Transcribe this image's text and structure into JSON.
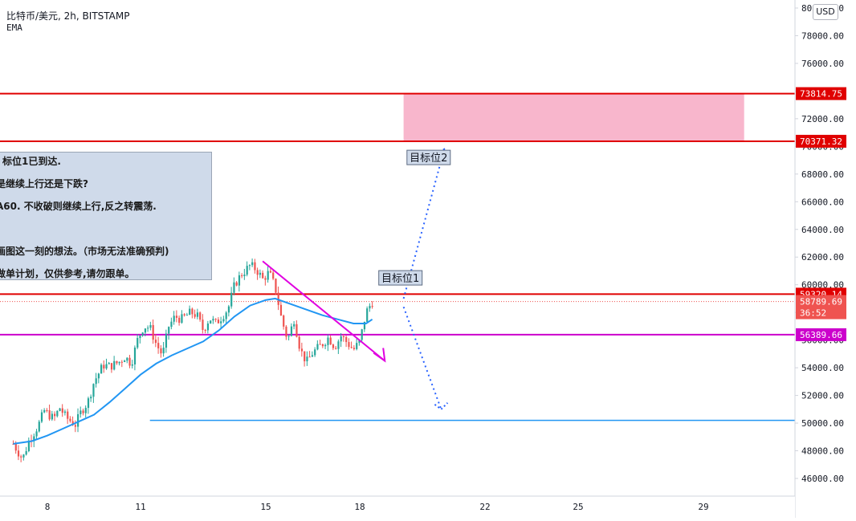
{
  "header": {
    "symbol_line": "比特币/美元, 2h, BITSTAMP",
    "indicator": "EMA",
    "currency_button": "USD"
  },
  "note": {
    "lines": [
      "标位1已到达.",
      "是继续上行还是下跌?",
      "A60. 不收破则继续上行,反之转震荡.",
      "",
      "画图这一刻的想法。（市场无法准确预判)",
      "做单计划，仅供参考,请勿跟单。"
    ]
  },
  "chart_data": {
    "type": "candlestick",
    "symbol": "BTC/USD",
    "timeframe": "2h",
    "ylim": [
      45000,
      80000
    ],
    "y_ticks": [
      "80000.00",
      "78000.00",
      "76000.00",
      "74000.00",
      "72000.00",
      "70000.00",
      "68000.00",
      "66000.00",
      "64000.00",
      "62000.00",
      "60000.00",
      "58000.00",
      "56000.00",
      "54000.00",
      "52000.00",
      "50000.00",
      "48000.00",
      "46000.00"
    ],
    "x_ticks": [
      {
        "label": "8",
        "day": 8
      },
      {
        "label": "11",
        "day": 11
      },
      {
        "label": "15",
        "day": 15
      },
      {
        "label": "18",
        "day": 18
      },
      {
        "label": "22",
        "day": 22
      },
      {
        "label": "25",
        "day": 25
      },
      {
        "label": "29",
        "day": 29
      }
    ],
    "xlim_days": [
      6.9,
      31.9
    ],
    "price_path": [
      [
        6.9,
        48500
      ],
      [
        7.2,
        47400
      ],
      [
        7.4,
        48700
      ],
      [
        7.7,
        49800
      ],
      [
        7.9,
        50900
      ],
      [
        8.2,
        50300
      ],
      [
        8.4,
        51100
      ],
      [
        8.6,
        50400
      ],
      [
        8.9,
        49900
      ],
      [
        9.1,
        50900
      ],
      [
        9.3,
        51500
      ],
      [
        9.5,
        53000
      ],
      [
        9.8,
        54200
      ],
      [
        10.0,
        54100
      ],
      [
        10.3,
        54400
      ],
      [
        10.5,
        54800
      ],
      [
        10.7,
        54300
      ],
      [
        10.9,
        56000
      ],
      [
        11.1,
        57000
      ],
      [
        11.3,
        56900
      ],
      [
        11.5,
        55700
      ],
      [
        11.7,
        54900
      ],
      [
        11.9,
        57000
      ],
      [
        12.1,
        57700
      ],
      [
        12.3,
        57500
      ],
      [
        12.6,
        58000
      ],
      [
        12.8,
        57800
      ],
      [
        13.0,
        56700
      ],
      [
        13.2,
        57600
      ],
      [
        13.4,
        57200
      ],
      [
        13.6,
        57700
      ],
      [
        13.8,
        58300
      ],
      [
        14.0,
        60000
      ],
      [
        14.2,
        60700
      ],
      [
        14.5,
        61400
      ],
      [
        14.7,
        61100
      ],
      [
        14.9,
        60400
      ],
      [
        15.1,
        60900
      ],
      [
        15.3,
        59800
      ],
      [
        15.5,
        57500
      ],
      [
        15.7,
        56000
      ],
      [
        15.9,
        57500
      ],
      [
        16.1,
        55300
      ],
      [
        16.3,
        54400
      ],
      [
        16.5,
        55100
      ],
      [
        16.8,
        55700
      ],
      [
        17.0,
        56200
      ],
      [
        17.2,
        55500
      ],
      [
        17.4,
        56300
      ],
      [
        17.6,
        55800
      ],
      [
        17.8,
        55300
      ],
      [
        18.0,
        55900
      ],
      [
        18.2,
        58000
      ],
      [
        18.4,
        58800
      ]
    ],
    "ema_path": [
      [
        6.9,
        48500
      ],
      [
        7.5,
        48700
      ],
      [
        8.0,
        49100
      ],
      [
        8.5,
        49600
      ],
      [
        9.0,
        50100
      ],
      [
        9.5,
        50600
      ],
      [
        10.0,
        51500
      ],
      [
        10.5,
        52500
      ],
      [
        11.0,
        53500
      ],
      [
        11.5,
        54300
      ],
      [
        12.0,
        54900
      ],
      [
        12.5,
        55400
      ],
      [
        13.0,
        55900
      ],
      [
        13.5,
        56700
      ],
      [
        14.0,
        57700
      ],
      [
        14.5,
        58500
      ],
      [
        15.0,
        58900
      ],
      [
        15.3,
        59000
      ],
      [
        15.8,
        58600
      ],
      [
        16.3,
        58200
      ],
      [
        16.8,
        57800
      ],
      [
        17.3,
        57500
      ],
      [
        17.8,
        57200
      ],
      [
        18.2,
        57200
      ],
      [
        18.4,
        57500
      ]
    ],
    "horizontal_levels": [
      {
        "price": 73814.75,
        "label": "73814.75",
        "color": "#e00000"
      },
      {
        "price": 70371.32,
        "label": "70371.32",
        "color": "#e00000"
      },
      {
        "price": 59320.14,
        "label": "59320.14",
        "color": "#e00000"
      },
      {
        "price": 56389.66,
        "label": "56389.66",
        "color": "#cc00cc"
      },
      {
        "price": 50200,
        "label": "",
        "color": "#2196f3",
        "start_day": 11.3
      }
    ],
    "current_price": {
      "price": 58789.69,
      "label": "58789.69",
      "countdown": "36:52",
      "color": "#ef5350"
    },
    "zone": {
      "start_day": 19.4,
      "end_day": 30.3,
      "top": 73814.75,
      "bottom": 70371.32,
      "color": "#f8b6cc"
    },
    "trendline": {
      "from_day": 14.9,
      "from_price": 61700,
      "to_day": 18.8,
      "to_price": 54500,
      "color": "#e000e0"
    },
    "targets": [
      {
        "label": "目标位1",
        "day": 19.3,
        "price": 60500
      },
      {
        "label": "目标位2",
        "day": 20.2,
        "price": 69200
      }
    ],
    "projection_up": [
      [
        19.4,
        59000
      ],
      [
        20.7,
        69800
      ]
    ],
    "projection_down": [
      [
        19.4,
        58400
      ],
      [
        20.6,
        51000
      ]
    ],
    "colors": {
      "up": "#26a69a",
      "down": "#ef5350",
      "ema": "#2196f3",
      "text": "#131722",
      "axis": "#d1d4dc"
    }
  }
}
